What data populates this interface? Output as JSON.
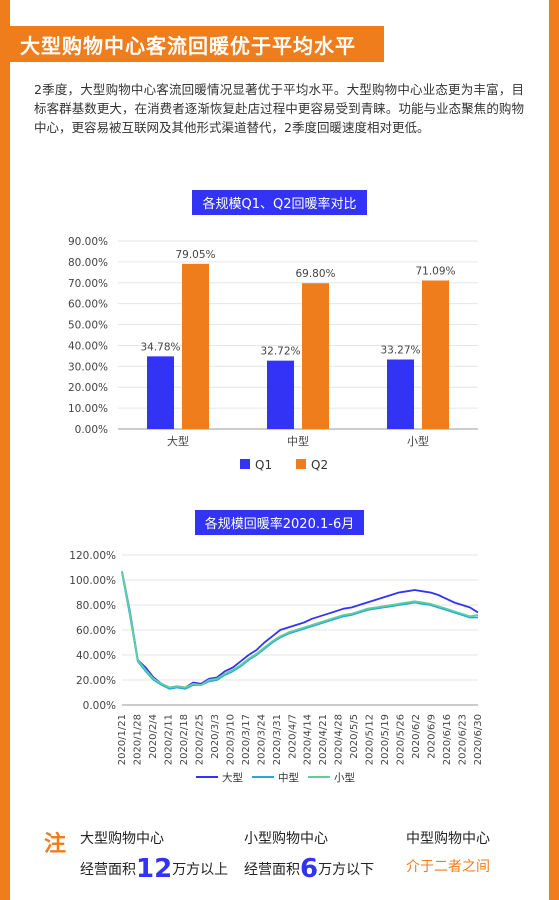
{
  "header": {
    "title": "大型购物中心客流回暖优于平均水平",
    "intro": "2季度，大型购物中心客流回暖情况显著优于平均水平。大型购物中心业态更为丰富，目标客群基数更大，在消费者逐渐恢复赴店过程中更容易受到青睐。功能与业态聚焦的购物中心，更容易被互联网及其他形式渠道替代，2季度回暖速度相对更低。"
  },
  "colors": {
    "accent": "#ef7d1b",
    "blue": "#3333f5",
    "light_blue": "#2aa6de",
    "green": "#5fcf9c"
  },
  "chart_data": [
    {
      "type": "bar",
      "title": "各规模Q1、Q2回暖率对比",
      "categories": [
        "大型",
        "中型",
        "小型"
      ],
      "series": [
        {
          "name": "Q1",
          "values": [
            34.78,
            32.72,
            33.27
          ],
          "labels": [
            "34.78%",
            "32.72%",
            "33.27%"
          ]
        },
        {
          "name": "Q2",
          "values": [
            79.05,
            69.8,
            71.09
          ],
          "labels": [
            "79.05%",
            "69.80%",
            "71.09%"
          ]
        }
      ],
      "ylim": [
        0,
        90
      ],
      "yticks": [
        "0.00%",
        "10.00%",
        "20.00%",
        "30.00%",
        "40.00%",
        "50.00%",
        "60.00%",
        "70.00%",
        "80.00%",
        "90.00%"
      ],
      "legend": "bottom"
    },
    {
      "type": "line",
      "title": "各规模回暖率2020.1-6月",
      "x_start": "2020/1/21",
      "x_end": "2020/6/30",
      "xticks": [
        "2020/1/21",
        "2020/1/28",
        "2020/2/4",
        "2020/2/11",
        "2020/2/18",
        "2020/2/25",
        "2020/3/3",
        "2020/3/10",
        "2020/3/17",
        "2020/3/24",
        "2020/3/31",
        "2020/4/7",
        "2020/4/14",
        "2020/4/21",
        "2020/4/28",
        "2020/5/5",
        "2020/5/12",
        "2020/5/19",
        "2020/5/26",
        "2020/6/2",
        "2020/6/9",
        "2020/6/16",
        "2020/6/23",
        "2020/6/30"
      ],
      "ylim": [
        0,
        120
      ],
      "yticks": [
        "0.00%",
        "20.00%",
        "40.00%",
        "60.00%",
        "80.00%",
        "100.00%",
        "120.00%"
      ],
      "series": [
        {
          "name": "大型",
          "values": [
            107,
            75,
            36,
            30,
            22,
            17,
            14,
            15,
            14,
            18,
            17,
            21,
            22,
            27,
            30,
            35,
            40,
            44,
            50,
            55,
            60,
            62,
            64,
            66,
            69,
            71,
            73,
            75,
            77,
            78,
            80,
            82,
            84,
            86,
            88,
            90,
            91,
            92,
            91,
            90,
            88,
            85,
            82,
            80,
            78,
            74
          ]
        },
        {
          "name": "中型",
          "values": [
            106,
            72,
            35,
            27,
            20,
            16,
            13,
            14,
            13,
            16,
            16,
            19,
            20,
            24,
            27,
            31,
            36,
            40,
            45,
            50,
            54,
            57,
            59,
            61,
            63,
            65,
            67,
            69,
            71,
            72,
            74,
            76,
            77,
            78,
            79,
            80,
            81,
            82,
            81,
            80,
            78,
            76,
            74,
            72,
            70,
            70
          ]
        },
        {
          "name": "小型",
          "values": [
            107,
            74,
            36,
            28,
            21,
            17,
            14,
            15,
            14,
            17,
            16,
            20,
            21,
            25,
            28,
            32,
            37,
            41,
            46,
            51,
            55,
            58,
            60,
            62,
            64,
            66,
            68,
            70,
            72,
            73,
            75,
            77,
            78,
            79,
            80,
            81,
            82,
            83,
            82,
            81,
            79,
            77,
            75,
            73,
            71,
            72
          ]
        }
      ],
      "legend": "bottom"
    }
  ],
  "footer": {
    "note": "注",
    "large_name": "大型购物中心",
    "large_desc_pre": "经营面积",
    "large_num": "12",
    "large_desc_post": "万方以上",
    "small_name": "小型购物中心",
    "small_desc_pre": "经营面积",
    "small_num": "6",
    "small_desc_post": "万方以下",
    "medium_name": "中型购物中心",
    "medium_desc": "介于二者之间"
  }
}
